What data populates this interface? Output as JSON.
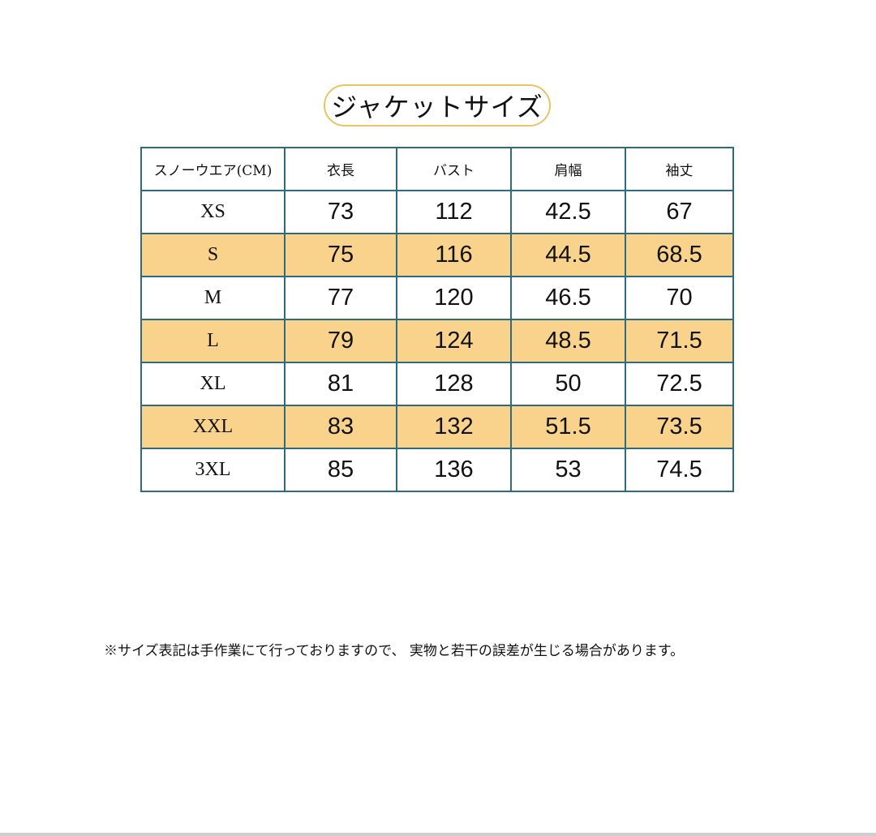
{
  "title": "ジャケットサイズ",
  "colors": {
    "border": "#2f6b7c",
    "highlight_row": "#f9d38b",
    "title_border": "#e9c463"
  },
  "table": {
    "headers": [
      "スノーウエア(CM)",
      "衣長",
      "バスト",
      "肩幅",
      "袖丈"
    ],
    "rows": [
      [
        "XS",
        "73",
        "112",
        "42.5",
        "67"
      ],
      [
        "S",
        "75",
        "116",
        "44.5",
        "68.5"
      ],
      [
        "M",
        "77",
        "120",
        "46.5",
        "70"
      ],
      [
        "L",
        "79",
        "124",
        "48.5",
        "71.5"
      ],
      [
        "XL",
        "81",
        "128",
        "50",
        "72.5"
      ],
      [
        "XXL",
        "83",
        "132",
        "51.5",
        "73.5"
      ],
      [
        "3XL",
        "85",
        "136",
        "53",
        "74.5"
      ]
    ]
  },
  "note": "※サイズ表記は手作業にて行っておりますので、 実物と若干の誤差が生じる場合があります。"
}
